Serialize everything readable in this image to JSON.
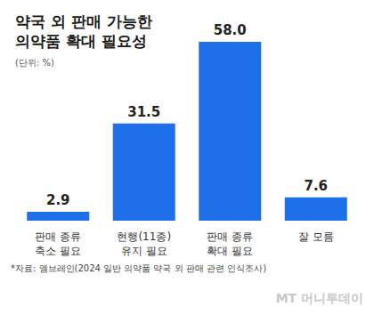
{
  "chart_data": {
    "type": "bar",
    "title": "약국 외 판매 가능한\n의약품 확대 필요성",
    "subtitle": "(단위: %)",
    "categories": [
      "판매 종류\n축소 필요",
      "현행(11종)\n유지 필요",
      "판매 종류\n확대 필요",
      "잘 모름"
    ],
    "values": [
      2.9,
      31.5,
      58.0,
      7.6
    ],
    "value_labels": [
      "2.9",
      "31.5",
      "58.0",
      "7.6"
    ],
    "color": "#1f6fe8",
    "ylim": [
      0,
      60
    ],
    "grid": false,
    "data_labels": true,
    "tick_labels": "x",
    "source": "*자료: 엠브레인(2024 일반 의약품 약국 외 판매 관련 인식조사)",
    "credit": "MT 머니투데이"
  }
}
